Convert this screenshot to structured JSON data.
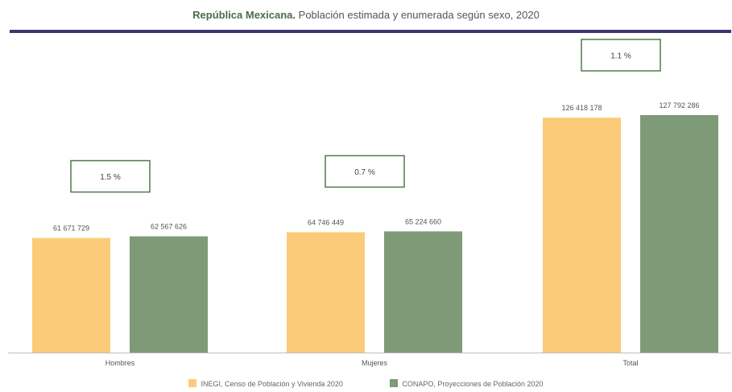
{
  "chart_data": {
    "type": "bar",
    "title_bold": "República Mexicana.",
    "title_rest": " Población estimada y enumerada según sexo, 2020",
    "categories": [
      "Hombres",
      "Mujeres",
      "Total"
    ],
    "series": [
      {
        "name": "INEGI, Censo de Población y Vivienda 2020",
        "color": "#fbcb79",
        "values": [
          61671729,
          64746449,
          126418178
        ],
        "labels": [
          "61 671 729",
          "64 746 449",
          "126 418 178"
        ]
      },
      {
        "name": "CONAPO, Proyecciones de Población 2020",
        "color": "#7e9a77",
        "values": [
          62567626,
          65224660,
          127792286
        ],
        "labels": [
          "62 567 626",
          "65 224 660",
          "127 792 286"
        ]
      }
    ],
    "differences": [
      "1.5 %",
      "0.7 %",
      "1.1 %"
    ],
    "legend_position": "bottom",
    "grid": false
  }
}
